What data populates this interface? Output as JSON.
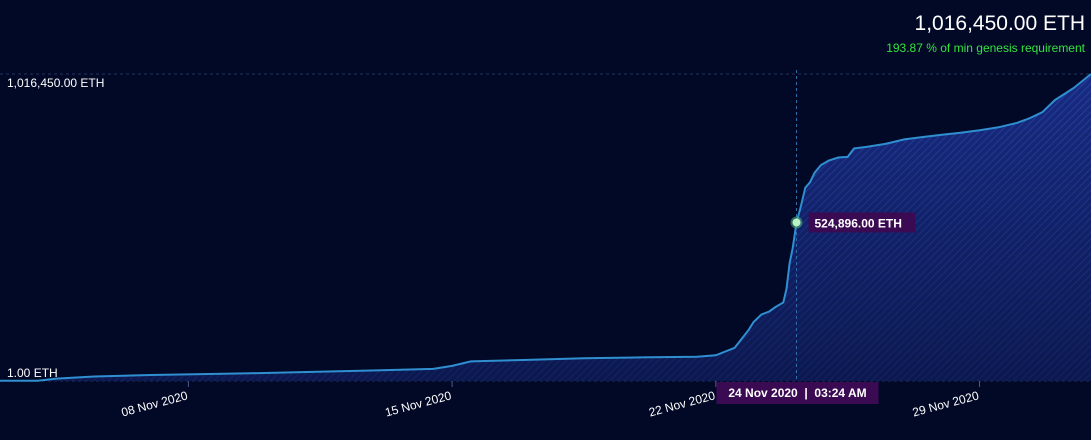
{
  "header": {
    "total_value": "1,016,450.00 ETH",
    "percent_value": "193.87",
    "percent_text": "% of min genesis requirement"
  },
  "tooltip": {
    "value_label": "524,896.00 ETH",
    "date_label": "24 Nov 2020  |  03:24 AM",
    "x": "2020-11-24T03:24",
    "y": 524896
  },
  "colors": {
    "background": "#020926",
    "line": "#2f8fd0",
    "area": "#1d3aa8",
    "tooltip_bg": "#3a0b52",
    "accent_green": "#33e43d",
    "marker": "#b9f5c5"
  },
  "chart_data": {
    "type": "area",
    "title": "",
    "xlabel": "",
    "ylabel": "",
    "y_tick_labels": [
      "1.00 ETH",
      "1,016,450.00 ETH"
    ],
    "y_tick_values": [
      1,
      1016450
    ],
    "x_tick_labels": [
      "08 Nov 2020",
      "15 Nov 2020",
      "22 Nov 2020",
      "29 Nov 2020"
    ],
    "x_tick_dates": [
      "2020-11-08",
      "2020-11-15",
      "2020-11-22",
      "2020-11-29"
    ],
    "xlim": [
      "2020-11-03T00:00",
      "2020-12-01T23:00"
    ],
    "ylim": [
      1,
      1016450
    ],
    "grid": false,
    "series": [
      {
        "x": [
          "2020-11-03T00:00",
          "2020-11-04T00:00",
          "2020-11-04T12:00",
          "2020-11-05T12:00",
          "2020-11-07T00:00",
          "2020-11-09T12:00",
          "2020-11-12T00:00",
          "2020-11-14T12:00",
          "2020-11-15T00:00",
          "2020-11-15T12:00",
          "2020-11-17T00:00",
          "2020-11-18T12:00",
          "2020-11-20T00:00",
          "2020-11-21T12:00",
          "2020-11-22T00:00",
          "2020-11-22T12:00",
          "2020-11-22T18:00",
          "2020-11-22T21:00",
          "2020-11-23T00:00",
          "2020-11-23T05:00",
          "2020-11-23T10:00",
          "2020-11-23T14:00",
          "2020-11-23T19:00",
          "2020-11-23T21:00",
          "2020-11-23T23:00",
          "2020-11-24T01:00",
          "2020-11-24T03:24",
          "2020-11-24T06:00",
          "2020-11-24T09:00",
          "2020-11-24T12:00",
          "2020-11-24T15:00",
          "2020-11-24T19:00",
          "2020-11-25T00:00",
          "2020-11-25T06:00",
          "2020-11-25T12:00",
          "2020-11-25T16:00",
          "2020-11-26T00:00",
          "2020-11-26T12:00",
          "2020-11-27T00:00",
          "2020-11-27T12:00",
          "2020-11-28T00:00",
          "2020-11-28T12:00",
          "2020-11-29T00:00",
          "2020-11-29T12:00",
          "2020-11-30T00:00",
          "2020-11-30T08:00",
          "2020-11-30T16:00",
          "2020-12-01T00:00",
          "2020-12-01T12:00",
          "2020-12-01T23:00"
        ],
        "y": [
          1000,
          1000,
          8000,
          15000,
          20000,
          25000,
          32000,
          40000,
          50000,
          65000,
          70000,
          75000,
          78000,
          80000,
          85000,
          110000,
          150000,
          170000,
          195000,
          220000,
          230000,
          245000,
          260000,
          305000,
          390000,
          440000,
          524896,
          575000,
          640000,
          658000,
          690000,
          715000,
          730000,
          740000,
          742000,
          770000,
          775000,
          785000,
          800000,
          808000,
          815000,
          822000,
          830000,
          840000,
          855000,
          870000,
          890000,
          930000,
          970000,
          1016450
        ]
      }
    ]
  }
}
